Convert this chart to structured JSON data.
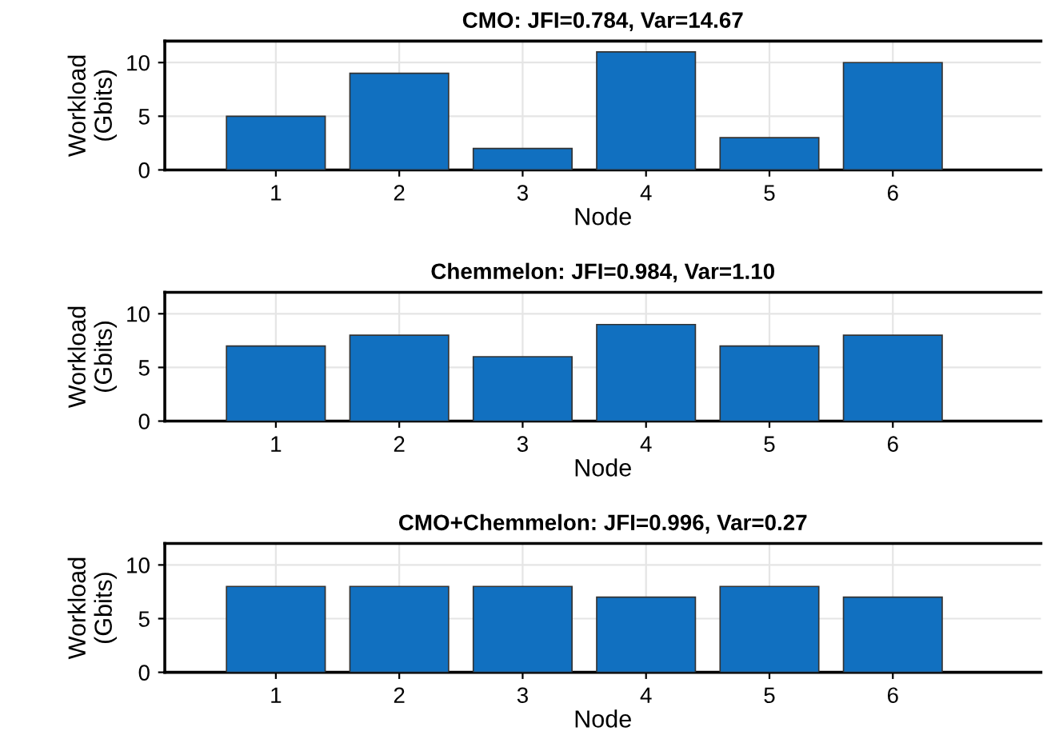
{
  "chart_data": [
    {
      "type": "bar",
      "title": "CMO: JFI=0.784, Var=14.67",
      "xlabel": "Node",
      "ylabel": "Workload\n(Gbits)",
      "x": [
        1,
        2,
        3,
        4,
        5,
        6
      ],
      "values": [
        5,
        9,
        2,
        11,
        3,
        10
      ],
      "color": "#1170c0",
      "xlim": [
        0.1,
        7.2
      ],
      "xticks": [
        1,
        2,
        3,
        4,
        5,
        6
      ],
      "ylim": [
        0,
        12
      ],
      "yticks": [
        0,
        5,
        10
      ],
      "grid": true
    },
    {
      "type": "bar",
      "title": "Chemmelon: JFI=0.984, Var=1.10",
      "xlabel": "Node",
      "ylabel": "Workload\n(Gbits)",
      "x": [
        1,
        2,
        3,
        4,
        5,
        6
      ],
      "values": [
        7,
        8,
        6,
        9,
        7,
        8
      ],
      "color": "#1170c0",
      "xlim": [
        0.1,
        7.2
      ],
      "xticks": [
        1,
        2,
        3,
        4,
        5,
        6
      ],
      "ylim": [
        0,
        12
      ],
      "yticks": [
        0,
        5,
        10
      ],
      "grid": true
    },
    {
      "type": "bar",
      "title": "CMO+Chemmelon: JFI=0.996, Var=0.27",
      "xlabel": "Node",
      "ylabel": "Workload\n(Gbits)",
      "x": [
        1,
        2,
        3,
        4,
        5,
        6
      ],
      "values": [
        8,
        8,
        8,
        7,
        8,
        7
      ],
      "color": "#1170c0",
      "xlim": [
        0.1,
        7.2
      ],
      "xticks": [
        1,
        2,
        3,
        4,
        5,
        6
      ],
      "ylim": [
        0,
        12
      ],
      "yticks": [
        0,
        5,
        10
      ],
      "grid": true
    }
  ]
}
